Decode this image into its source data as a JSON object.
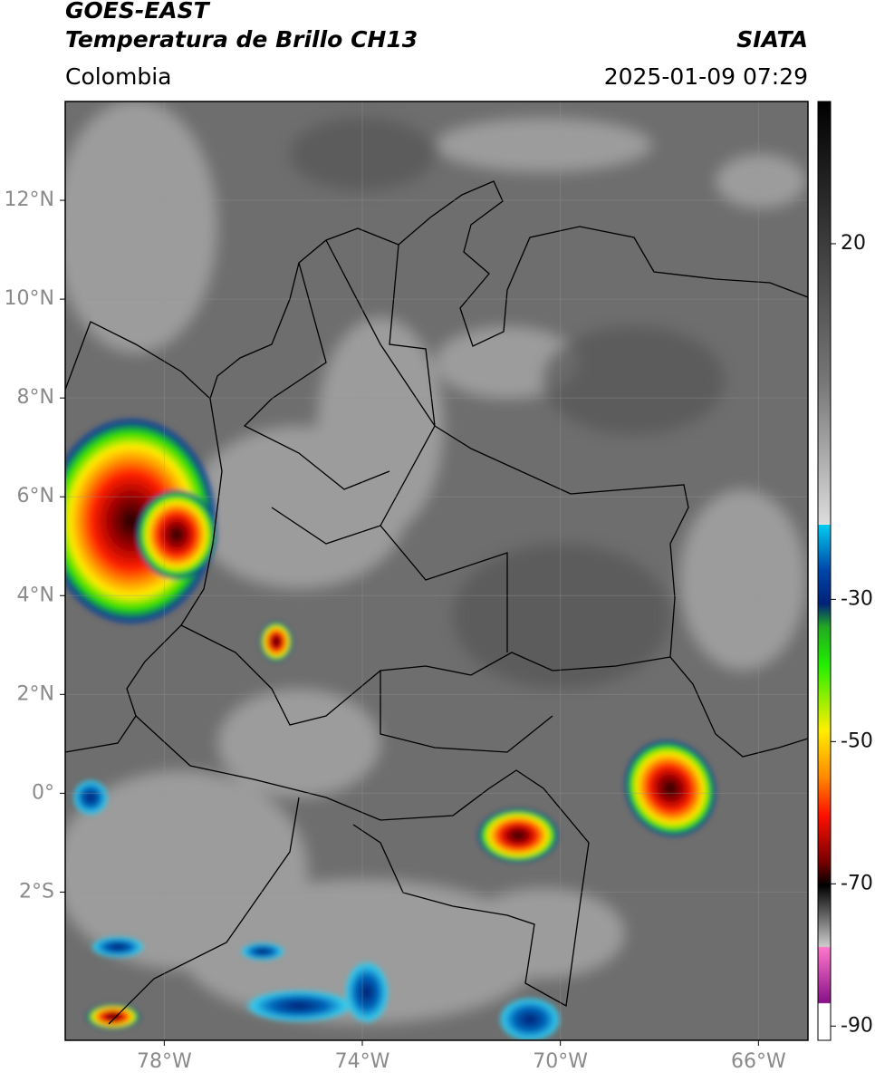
{
  "map": {
    "title": "GOES-EAST",
    "subtitle": "Temperatura de Brillo CH13",
    "source": "SIATA",
    "region": "Colombia",
    "timestamp": "2025-01-09 07:29",
    "xlim": [
      -80,
      -65
    ],
    "ylim": [
      -5,
      14
    ],
    "xticks": [
      {
        "value": -78,
        "label": "78°W"
      },
      {
        "value": -74,
        "label": "74°W"
      },
      {
        "value": -70,
        "label": "70°W"
      },
      {
        "value": -66,
        "label": "66°W"
      }
    ],
    "yticks": [
      {
        "value": 12,
        "label": "12°N"
      },
      {
        "value": 10,
        "label": "10°N"
      },
      {
        "value": 8,
        "label": "8°N"
      },
      {
        "value": 6,
        "label": "6°N"
      },
      {
        "value": 4,
        "label": "4°N"
      },
      {
        "value": 2,
        "label": "2°N"
      },
      {
        "value": 0,
        "label": "0°"
      },
      {
        "value": -2,
        "label": "2°S"
      }
    ],
    "grid": true,
    "colorbar": {
      "clim": [
        -92,
        40
      ],
      "ticks": [
        20,
        -30,
        -50,
        -70,
        -90
      ]
    }
  }
}
